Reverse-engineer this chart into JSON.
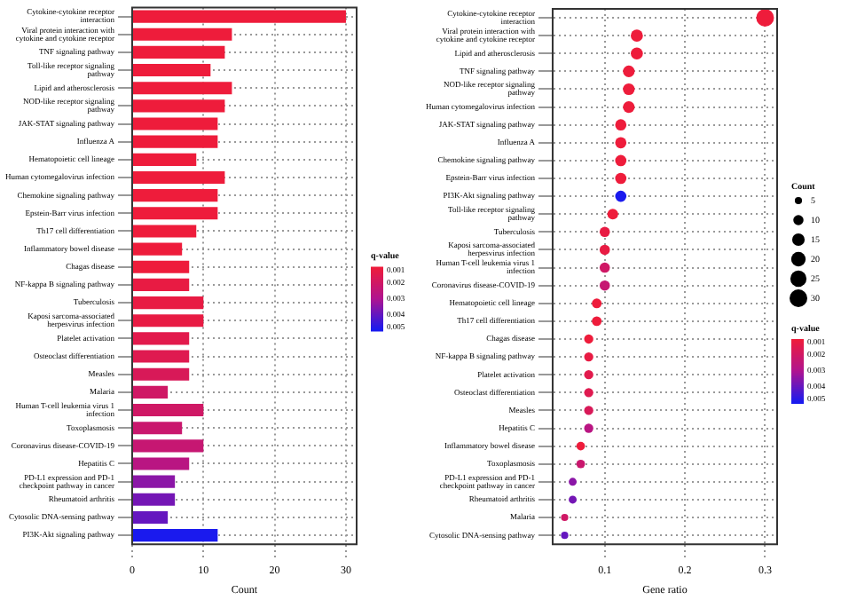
{
  "chart_data": [
    {
      "type": "bar",
      "orientation": "horizontal",
      "xlabel": "Count",
      "xlim": [
        0,
        31.5
      ],
      "xticks": [
        0,
        10,
        20,
        30
      ],
      "grid": true,
      "clabel": "q-value",
      "clim": [
        0.001,
        0.005
      ],
      "cticks": [
        0.001,
        0.002,
        0.003,
        0.004,
        0.005
      ],
      "categories": [
        "Cytokine-cytokine receptor interaction",
        "Viral protein interaction with cytokine and cytokine receptor",
        "TNF signaling pathway",
        "Toll-like receptor signaling pathway",
        "Lipid and atherosclerosis",
        "NOD-like receptor signaling pathway",
        "JAK-STAT signaling pathway",
        "Influenza A",
        "Hematopoietic cell lineage",
        "Human cytomegalovirus infection",
        "Chemokine signaling pathway",
        "Epstein-Barr virus infection",
        "Th17 cell differentiation",
        "Inflammatory bowel disease",
        "Chagas disease",
        "NF-kappa B signaling pathway",
        "Tuberculosis",
        "Kaposi sarcoma-associated herpesvirus infection",
        "Platelet activation",
        "Osteoclast differentiation",
        "Measles",
        "Malaria",
        "Human T-cell leukemia virus 1 infection",
        "Toxoplasmosis",
        "Coronavirus disease-COVID-19",
        "Hepatitis C",
        "PD-L1 expression and PD-1 checkpoint pathway in cancer",
        "Rheumatoid arthritis",
        "Cytosolic DNA-sensing pathway",
        "PI3K-Akt signaling pathway"
      ],
      "values": [
        30,
        14,
        13,
        11,
        14,
        13,
        12,
        12,
        9,
        13,
        12,
        12,
        9,
        7,
        8,
        8,
        10,
        10,
        8,
        8,
        8,
        5,
        10,
        7,
        10,
        8,
        6,
        6,
        5,
        12
      ],
      "cvalues": [
        0.001,
        0.001,
        0.001,
        0.001,
        0.001,
        0.001,
        0.001,
        0.001,
        0.001,
        0.001,
        0.001,
        0.001,
        0.001,
        0.001,
        0.001,
        0.0012,
        0.0012,
        0.0012,
        0.0014,
        0.0015,
        0.0017,
        0.002,
        0.002,
        0.0022,
        0.0023,
        0.0027,
        0.0035,
        0.0038,
        0.004,
        0.005
      ]
    },
    {
      "type": "bubble",
      "orientation": "horizontal",
      "xlabel": "Gene ratio",
      "xlim": [
        0.035,
        0.315
      ],
      "xticks": [
        0.1,
        0.2,
        0.3
      ],
      "grid": true,
      "legend_title": "Count",
      "size_legend": [
        5,
        10,
        15,
        20,
        25,
        30
      ],
      "clabel": "q-value",
      "clim": [
        0.001,
        0.005
      ],
      "cticks": [
        0.001,
        0.002,
        0.003,
        0.004,
        0.005
      ],
      "categories": [
        "Cytokine-cytokine receptor interaction",
        "Viral protein interaction with cytokine and cytokine receptor",
        "Lipid and atherosclerosis",
        "TNF signaling pathway",
        "NOD-like receptor signaling pathway",
        "Human cytomegalovirus infection",
        "JAK-STAT signaling pathway",
        "Influenza A",
        "Chemokine signaling pathway",
        "Epstein-Barr virus infection",
        "PI3K-Akt signaling pathway",
        "Toll-like receptor signaling pathway",
        "Tuberculosis",
        "Kaposi sarcoma-associated herpesvirus infection",
        "Human T-cell leukemia virus 1 infection",
        "Coronavirus disease-COVID-19",
        "Hematopoietic cell lineage",
        "Th17 cell differentiation",
        "Chagas disease",
        "NF-kappa B signaling pathway",
        "Platelet activation",
        "Osteoclast differentiation",
        "Measles",
        "Hepatitis C",
        "Inflammatory bowel disease",
        "Toxoplasmosis",
        "PD-L1 expression and PD-1 checkpoint pathway in cancer",
        "Rheumatoid arthritis",
        "Malaria",
        "Cytosolic DNA-sensing pathway"
      ],
      "values": [
        0.3,
        0.14,
        0.14,
        0.13,
        0.13,
        0.13,
        0.12,
        0.12,
        0.12,
        0.12,
        0.12,
        0.11,
        0.1,
        0.1,
        0.1,
        0.1,
        0.09,
        0.09,
        0.08,
        0.08,
        0.08,
        0.08,
        0.08,
        0.08,
        0.07,
        0.07,
        0.06,
        0.06,
        0.05,
        0.05
      ],
      "sizes": [
        30,
        14,
        14,
        13,
        13,
        13,
        12,
        12,
        12,
        12,
        12,
        11,
        10,
        10,
        10,
        10,
        9,
        9,
        8,
        8,
        8,
        8,
        8,
        8,
        7,
        7,
        6,
        6,
        5,
        5
      ],
      "cvalues": [
        0.001,
        0.001,
        0.001,
        0.001,
        0.001,
        0.001,
        0.001,
        0.001,
        0.001,
        0.001,
        0.005,
        0.001,
        0.0012,
        0.0012,
        0.002,
        0.0023,
        0.001,
        0.001,
        0.001,
        0.0012,
        0.0014,
        0.0015,
        0.0017,
        0.0027,
        0.001,
        0.0022,
        0.0035,
        0.0038,
        0.002,
        0.004
      ]
    }
  ]
}
